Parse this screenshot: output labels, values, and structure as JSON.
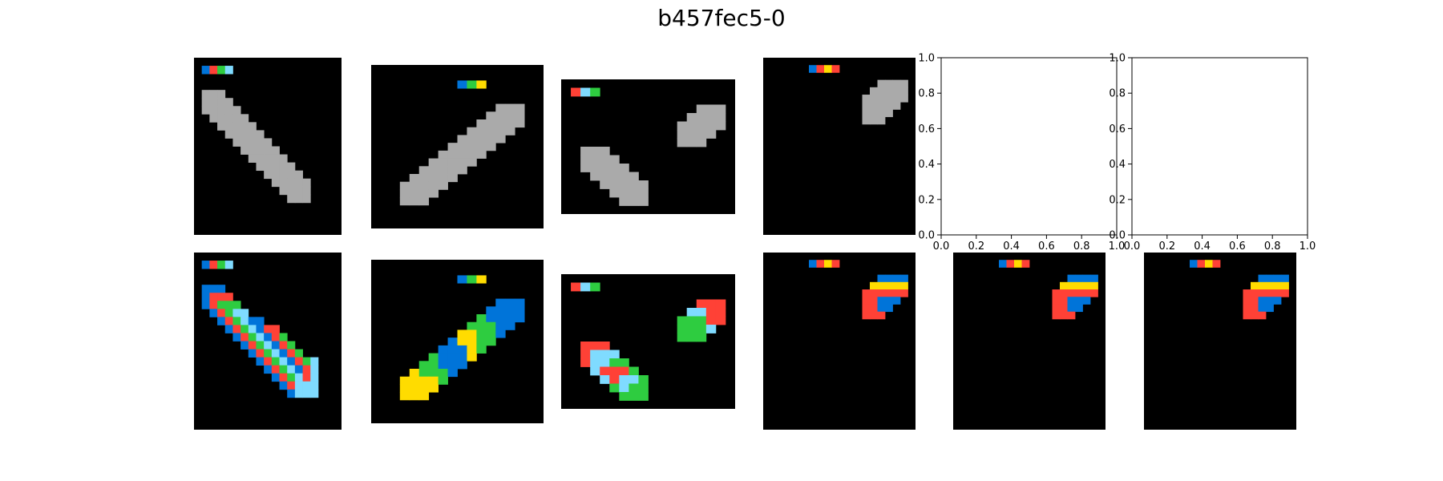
{
  "figure_title": "b457fec5-0",
  "palette": {
    "0": "#000000",
    "1": "#0074D9",
    "2": "#FF4136",
    "3": "#2ECC40",
    "4": "#FFDC00",
    "5": "#AAAAAA",
    "6": "#F012BE",
    "7": "#FF851B",
    "8": "#7FDBFF",
    "9": "#870C25"
  },
  "empty_axes": {
    "xticks": [
      "0.0",
      "0.2",
      "0.4",
      "0.6",
      "0.8",
      "1.0"
    ],
    "yticks": [
      "0.0",
      "0.2",
      "0.4",
      "0.6",
      "0.8",
      "1.0"
    ]
  },
  "pairs": [
    {
      "input": [
        "0000000000000000000",
        "0123800000000000000",
        "0000000000000000000",
        "0000000000000000000",
        "0555000000000000000",
        "0555500000000000000",
        "0555550000000000000",
        "0055555000000000000",
        "0005555500000000000",
        "0000555550000000000",
        "0000055555000000000",
        "0000005555500000000",
        "0000000555550000000",
        "0000000055555000000",
        "0000000005555500000",
        "0000000000555550000",
        "0000000000055550000",
        "0000000000005550000",
        "0000000000000000000",
        "0000000000000000000",
        "0000000000000000000",
        "0000000000000000000"
      ],
      "output": [
        "0000000000000000000",
        "0123800000000000000",
        "0000000000000000000",
        "0000000000000000000",
        "0111000000000000000",
        "0122200000000000000",
        "0123330000000000000",
        "0012388000000000000",
        "0001238110000000000",
        "0000123812200000000",
        "0000012381230000000",
        "0000001238123000000",
        "0000000123812300000",
        "0000000012381238000",
        "0000000001238128000",
        "0000000000123828000",
        "0000000000012888000",
        "0000000000001888000",
        "0000000000000000000",
        "0000000000000000000",
        "0000000000000000000",
        "0000000000000000000"
      ]
    },
    {
      "input": [
        "000000000000000000",
        "000000000000000000",
        "000000000134000000",
        "000000000000000000",
        "000000000000000000",
        "000000000000055500",
        "000000000000555500",
        "000000000005555500",
        "000000000055555000",
        "000000000555550000",
        "000000005555500000",
        "000000055555000000",
        "000000555550000000",
        "000005555500000000",
        "000055555000000000",
        "000555550000000000",
        "000555500000000000",
        "000555000000000000",
        "000000000000000000",
        "000000000000000000",
        "000000000000000000"
      ],
      "output": [
        "000000000000000000",
        "000000000000000000",
        "000000000134000000",
        "000000000000000000",
        "000000000000000000",
        "000000000000011100",
        "000000000000111100",
        "000000000003111100",
        "000000000033311000",
        "000000000443310000",
        "000000001443300000",
        "000000011143000000",
        "000000311140000000",
        "000003311100000000",
        "000043331000000000",
        "000444430000000000",
        "000444400000000000",
        "000444000000000000",
        "000000000000000000",
        "000000000000000000",
        "000000000000000000"
      ]
    },
    {
      "input": [
        "000000000000000000",
        "028300000000000000",
        "000000000000000000",
        "000000000000005550",
        "000000000000055550",
        "000000000000555550",
        "000000000000555500",
        "000000000000555000",
        "005550000000000000",
        "005555000000000000",
        "005555500000000000",
        "000555550000000000",
        "000055555000000000",
        "000005555000000000",
        "000000555000000000",
        "000000000000000000"
      ],
      "output": [
        "000000000000000000",
        "028300000000000000",
        "000000000000000000",
        "000000000000002220",
        "000000000000088220",
        "000000000000333220",
        "000000000000333800",
        "000000000000333000",
        "002220000000000000",
        "002888000000000000",
        "002883300000000000",
        "000822230000000000",
        "000082883000000000",
        "000003833000000000",
        "000000333000000000",
        "000000000000000000"
      ]
    },
    {
      "input": [
        "00000000000000000000",
        "00000012420000000000",
        "00000000000000000000",
        "00000000000000055550",
        "00000000000000555550",
        "00000000000005555550",
        "00000000000005555500",
        "00000000000005555000",
        "00000000000005550000",
        "00000000000000000000",
        "00000000000000000000",
        "00000000000000000000",
        "00000000000000000000",
        "00000000000000000000",
        "00000000000000000000",
        "00000000000000000000",
        "00000000000000000000",
        "00000000000000000000",
        "00000000000000000000",
        "00000000000000000000",
        "00000000000000000000",
        "00000000000000000000",
        "00000000000000000000",
        "00000000000000000000"
      ],
      "output": [
        "00000000000000000000",
        "00000012420000000000",
        "00000000000000000000",
        "00000000000000011110",
        "00000000000000444440",
        "00000000000002222220",
        "00000000000002211100",
        "00000000000002211000",
        "00000000000002220000",
        "00000000000000000000",
        "00000000000000000000",
        "00000000000000000000",
        "00000000000000000000",
        "00000000000000000000",
        "00000000000000000000",
        "00000000000000000000",
        "00000000000000000000",
        "00000000000000000000",
        "00000000000000000000",
        "00000000000000000000",
        "00000000000000000000",
        "00000000000000000000",
        "00000000000000000000",
        "00000000000000000000"
      ]
    }
  ]
}
